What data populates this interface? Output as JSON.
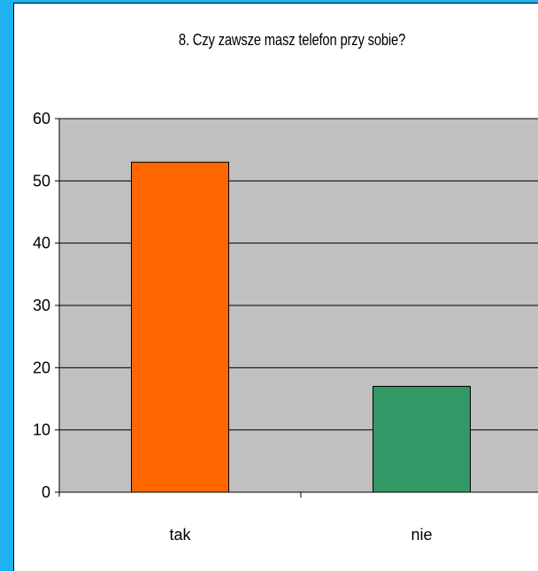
{
  "chart_data": {
    "type": "bar",
    "title": "8. Czy zawsze masz telefon przy sobie?",
    "categories": [
      "tak",
      "nie"
    ],
    "values": [
      53,
      17
    ],
    "bar_colors": [
      "#ff6600",
      "#339966"
    ],
    "ylim": [
      0,
      60
    ],
    "yticks": [
      "0",
      "10",
      "20",
      "30",
      "40",
      "50",
      "60"
    ],
    "grid": true,
    "plot_background": "#c0c0c0",
    "page_background": "#1fb2f0",
    "xlabel": "",
    "ylabel": ""
  }
}
